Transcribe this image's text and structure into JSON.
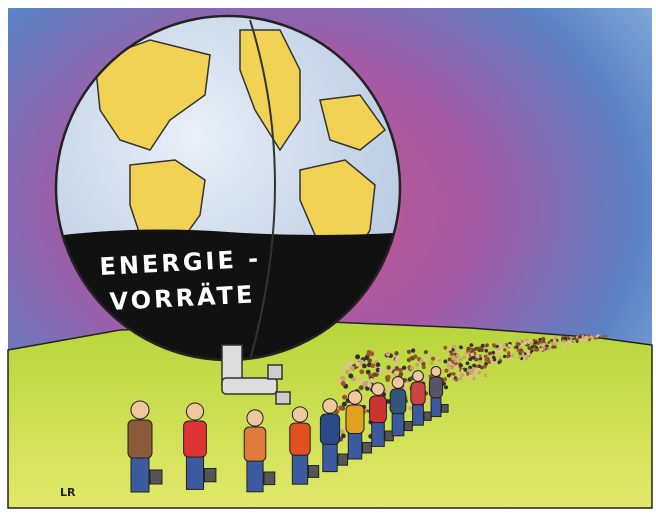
{
  "globe": {
    "label_lines": [
      "ENERGIE -",
      "VORRÄTE"
    ]
  },
  "signature": "LR"
}
